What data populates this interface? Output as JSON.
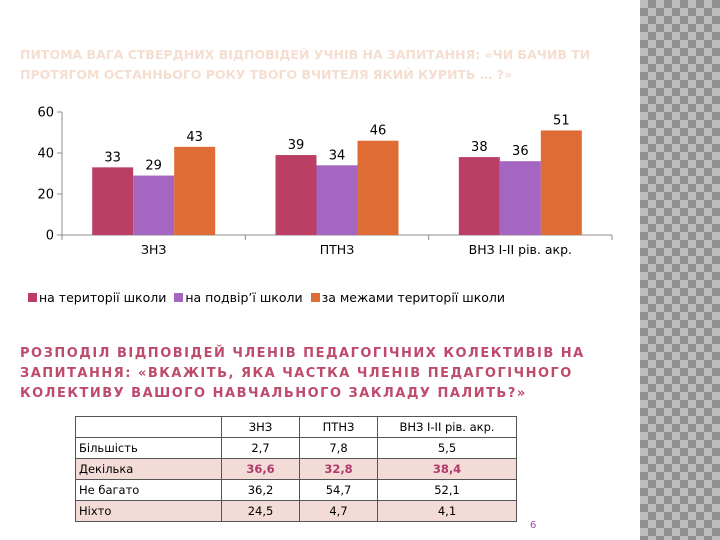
{
  "slide": {
    "faded_title": "ПИТОМА ВАГА СТВЕРДНИХ ВІДПОВІДЕЙ УЧНІВ НА ЗАПИТАННЯ: «ЧИ БАЧИВ ТИ ПРОТЯГОМ ОСТАННЬОГО РОКУ ТВОГО ВЧИТЕЛЯ ЯКИЙ КУРИТЬ … ?»",
    "section_heading": "РОЗПОДІЛ ВІДПОВІДЕЙ ЧЛЕНІВ ПЕДАГОГІЧНИХ КОЛЕКТИВІВ НА ЗАПИТАННЯ: «ВКАЖІТЬ, ЯКА ЧАСТКА ЧЛЕНІВ ПЕДАГОГІЧНОГО КОЛЕКТИВУ ВАШОГО НАВЧАЛЬНОГО ЗАКЛАДУ ПАЛИТЬ?»",
    "page_number": "6"
  },
  "colors": {
    "series1": "#bb3e64",
    "series2": "#a566c2",
    "series3": "#e06c35",
    "heading": "#be4a6c",
    "table_highlight": "#b03a6a",
    "table_stripe": "#f3dcd8"
  },
  "chart_data": [
    {
      "type": "bar",
      "title": "",
      "xlabel": "",
      "ylabel": "",
      "categories": [
        "ЗНЗ",
        "ПТНЗ",
        "ВНЗ І-ІІ рів. акр."
      ],
      "series": [
        {
          "name": "на території школи",
          "values": [
            33,
            39,
            38
          ]
        },
        {
          "name": "на подвір’ї школи",
          "values": [
            29,
            34,
            36
          ]
        },
        {
          "name": "за межами території школи",
          "values": [
            43,
            46,
            51
          ]
        }
      ],
      "ylim": [
        0,
        60
      ],
      "yticks": [
        0,
        20,
        40,
        60
      ],
      "grid": false,
      "legend_position": "bottom",
      "data_labels": true
    },
    {
      "type": "table",
      "columns": [
        "",
        "ЗНЗ",
        "ПТНЗ",
        "ВНЗ І-ІІ рів. акр."
      ],
      "rows": [
        {
          "label": "Більшість",
          "values": [
            "2,7",
            "7,8",
            "5,5"
          ]
        },
        {
          "label": "Декілька",
          "values": [
            "36,6",
            "32,8",
            "38,4"
          ]
        },
        {
          "label": "Не багато",
          "values": [
            "36,2",
            "54,7",
            "52,1"
          ]
        },
        {
          "label": "Ніхто",
          "values": [
            "24,5",
            "4,7",
            "4,1"
          ]
        }
      ],
      "highlighted_row": "Декілька"
    }
  ]
}
